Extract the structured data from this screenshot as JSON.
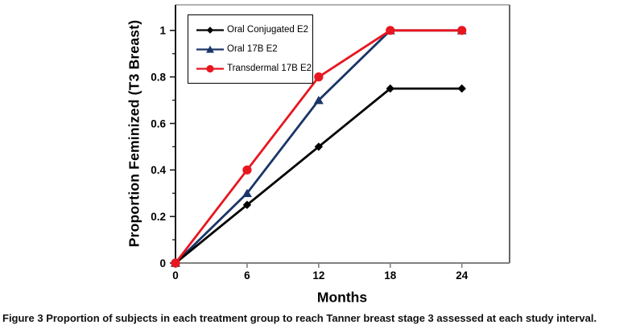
{
  "figure": {
    "caption": {
      "label": "Figure 3",
      "text": "Proportion of subjects in each treatment group to reach Tanner breast stage 3 assessed at each study interval."
    }
  },
  "chart_data": {
    "type": "line",
    "title": "",
    "xlabel": "Months",
    "ylabel": "Proportion Feminized (T3 Breast)",
    "x": [
      0,
      6,
      12,
      18,
      24
    ],
    "series": [
      {
        "name": "Oral Conjugated E2",
        "marker": "diamond",
        "color": "#000000",
        "values": [
          0,
          0.25,
          0.5,
          0.75,
          0.75
        ]
      },
      {
        "name": "Oral 17B E2",
        "marker": "triangle",
        "color": "#1A3568",
        "values": [
          0,
          0.3,
          0.7,
          1,
          1
        ]
      },
      {
        "name": "Transdermal 17B E2",
        "marker": "circle",
        "color": "#E8161F",
        "values": [
          0,
          0.4,
          0.8,
          1,
          1
        ]
      }
    ],
    "xticks": [
      0,
      6,
      12,
      18,
      24
    ],
    "yticks": [
      0,
      0.2,
      0.4,
      0.6,
      0.8,
      1
    ],
    "ytick_labels": [
      "0",
      "0.2",
      "0.4",
      "0.6",
      "0.8",
      "1"
    ],
    "xlim": [
      0,
      28
    ],
    "ylim": [
      0,
      1.11
    ],
    "y_minor_step": 0.1,
    "grid": false,
    "legend_position": "top-left-inside",
    "axis_colors": {
      "y_axis": "#1a1a1a",
      "x_axis": "#808080",
      "frame_top": "#999999",
      "frame_right": "#555555"
    }
  }
}
